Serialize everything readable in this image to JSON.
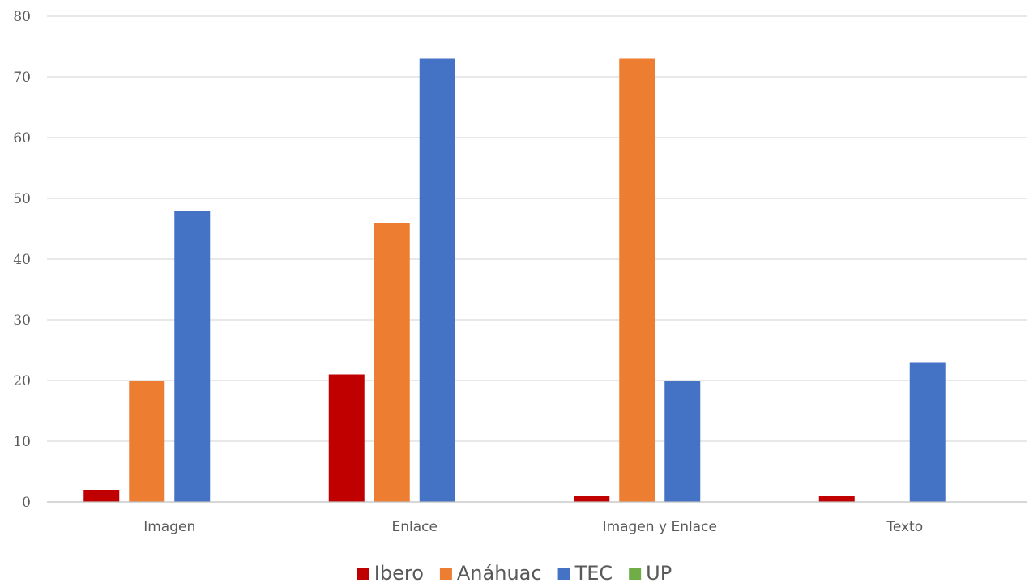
{
  "chart_data": {
    "type": "bar",
    "title": "",
    "xlabel": "",
    "ylabel": "",
    "categories": [
      "Imagen",
      "Enlace",
      "Imagen y Enlace",
      "Texto"
    ],
    "series": [
      {
        "name": "Ibero",
        "color": "#c00000",
        "values": [
          2,
          21,
          1,
          1
        ]
      },
      {
        "name": "Anáhuac",
        "color": "#ed7d31",
        "values": [
          20,
          46,
          73,
          0
        ]
      },
      {
        "name": "TEC",
        "color": "#4472c4",
        "values": [
          48,
          73,
          20,
          23
        ]
      },
      {
        "name": "UP",
        "color": "#70ad47",
        "values": [
          0,
          0,
          0,
          0
        ]
      }
    ],
    "ylim": [
      0,
      80
    ],
    "yticks": [
      0,
      10,
      20,
      30,
      40,
      50,
      60,
      70,
      80
    ],
    "grid": true,
    "legend_position": "bottom"
  }
}
